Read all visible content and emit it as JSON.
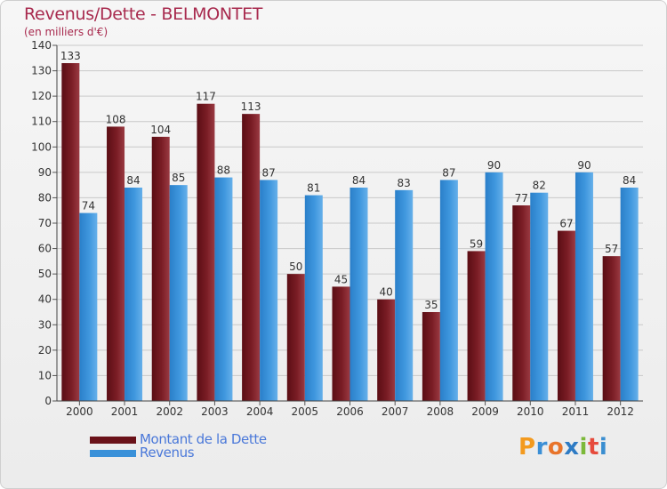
{
  "header": {
    "title": "Revenus/Dette - BELMONTET",
    "subtitle": "(en milliers d'€)"
  },
  "logo": {
    "text": "Proxiti",
    "letters": [
      "P",
      "r",
      "o",
      "x",
      "i",
      "t",
      "i"
    ],
    "colors": [
      "#f39a1e",
      "#3b8fd6",
      "#e8742a",
      "#2e7bc4",
      "#7cb93a",
      "#e64b3c",
      "#3a8ed0"
    ]
  },
  "colors": {
    "dette": "#7a1a22",
    "revenus": "#3a91d9",
    "title": "#a82a4e",
    "legend_text": "#4a78d9"
  },
  "legend": [
    {
      "key": "dette",
      "label": "Montant de la Dette"
    },
    {
      "key": "revenus",
      "label": "Revenus"
    }
  ],
  "chart_data": {
    "type": "bar",
    "title": "Revenus/Dette - BELMONTET",
    "subtitle": "(en milliers d'€)",
    "categories": [
      "2000",
      "2001",
      "2002",
      "2003",
      "2004",
      "2005",
      "2006",
      "2007",
      "2008",
      "2009",
      "2010",
      "2011",
      "2012"
    ],
    "series": [
      {
        "name": "Montant de la Dette",
        "key": "dette",
        "values": [
          133,
          108,
          104,
          117,
          113,
          50,
          45,
          40,
          35,
          59,
          77,
          67,
          57
        ]
      },
      {
        "name": "Revenus",
        "key": "revenus",
        "values": [
          74,
          84,
          85,
          88,
          87,
          81,
          84,
          83,
          87,
          90,
          82,
          90,
          84
        ]
      }
    ],
    "ylim": [
      0,
      140
    ],
    "yticks": [
      0,
      10,
      20,
      30,
      40,
      50,
      60,
      70,
      80,
      90,
      100,
      110,
      120,
      130,
      140
    ],
    "grid": true,
    "legend_position": "bottom-left"
  }
}
